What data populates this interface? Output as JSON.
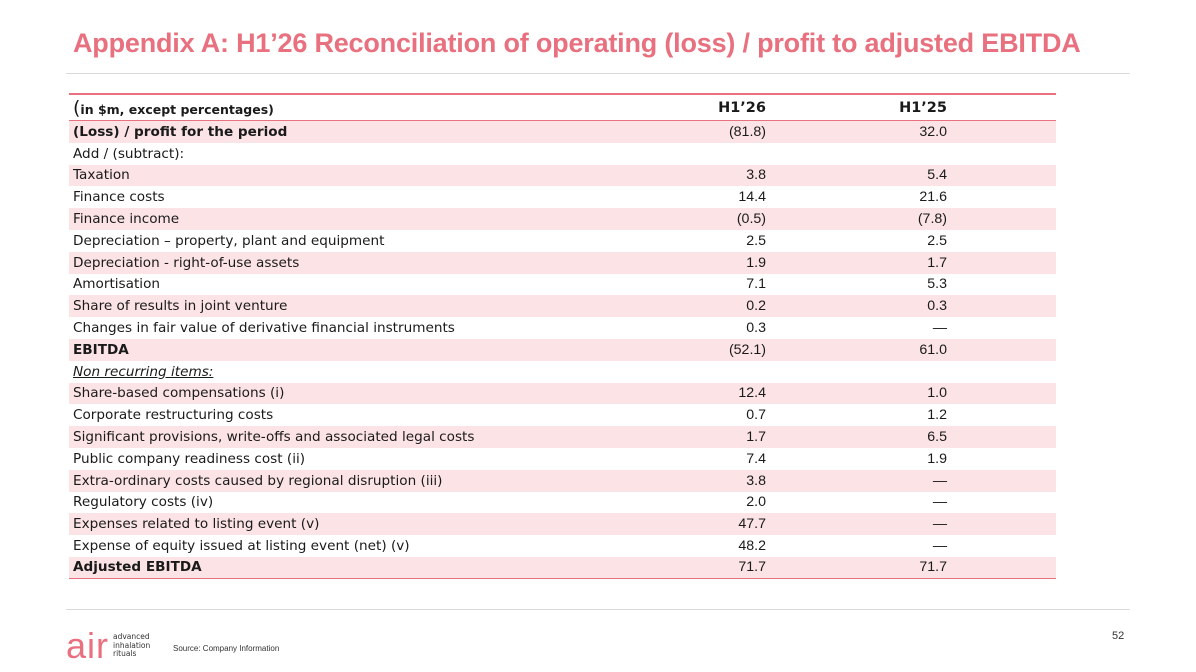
{
  "title": "Appendix A: H1’26 Reconciliation of operating (loss) / profit to adjusted EBITDA",
  "table": {
    "header": {
      "paren": "(",
      "label": "in $m, except percentages)",
      "col1": "H1’26",
      "col2": "H1’25"
    },
    "rows": [
      {
        "label": "(Loss) / profit for the period",
        "v1": "(81.8)",
        "v2": "32.0"
      },
      {
        "label": "Add / (subtract):",
        "v1": "",
        "v2": ""
      },
      {
        "label": "Taxation",
        "v1": "3.8",
        "v2": "5.4"
      },
      {
        "label": "Finance costs",
        "v1": "14.4",
        "v2": "21.6"
      },
      {
        "label": "Finance income",
        "v1": "(0.5)",
        "v2": "(7.8)"
      },
      {
        "label": "Depreciation – property, plant and equipment",
        "v1": "2.5",
        "v2": "2.5"
      },
      {
        "label": "Depreciation - right-of-use assets",
        "v1": "1.9",
        "v2": "1.7"
      },
      {
        "label": "Amortisation",
        "v1": "7.1",
        "v2": "5.3"
      },
      {
        "label": "Share of results in joint venture",
        "v1": "0.2",
        "v2": "0.3"
      },
      {
        "label": "Changes in fair value of derivative financial instruments",
        "v1": "0.3",
        "v2": "—"
      },
      {
        "label": "EBITDA",
        "v1": "(52.1)",
        "v2": "61.0"
      },
      {
        "label": "Non recurring items:",
        "v1": "",
        "v2": ""
      },
      {
        "label": "Share-based compensations (i)",
        "v1": "12.4",
        "v2": "1.0"
      },
      {
        "label": "Corporate restructuring costs",
        "v1": "0.7",
        "v2": "1.2"
      },
      {
        "label": "Significant provisions, write-offs and associated legal costs",
        "v1": "1.7",
        "v2": "6.5"
      },
      {
        "label": "Public company readiness cost (ii)",
        "v1": "7.4",
        "v2": "1.9"
      },
      {
        "label": "Extra-ordinary costs caused by regional disruption (iii)",
        "v1": "3.8",
        "v2": "—"
      },
      {
        "label": "Regulatory costs (iv)",
        "v1": "2.0",
        "v2": "—"
      },
      {
        "label": "Expenses related to listing event (v)",
        "v1": "47.7",
        "v2": "—"
      },
      {
        "label": "Expense of equity issued at listing event (net) (v)",
        "v1": "48.2",
        "v2": "—"
      },
      {
        "label": "Adjusted EBITDA",
        "v1": "71.7",
        "v2": "71.7"
      }
    ]
  },
  "footer": {
    "logo_mark": "air",
    "logo_line1": "advanced",
    "logo_line2": "inhalation",
    "logo_line3": "rituals",
    "source": "Source: Company Information",
    "page_number": "52"
  },
  "colors": {
    "accent": "#e8707f",
    "row_shade": "#fbe3e6",
    "rule": "#d9d9d9"
  }
}
